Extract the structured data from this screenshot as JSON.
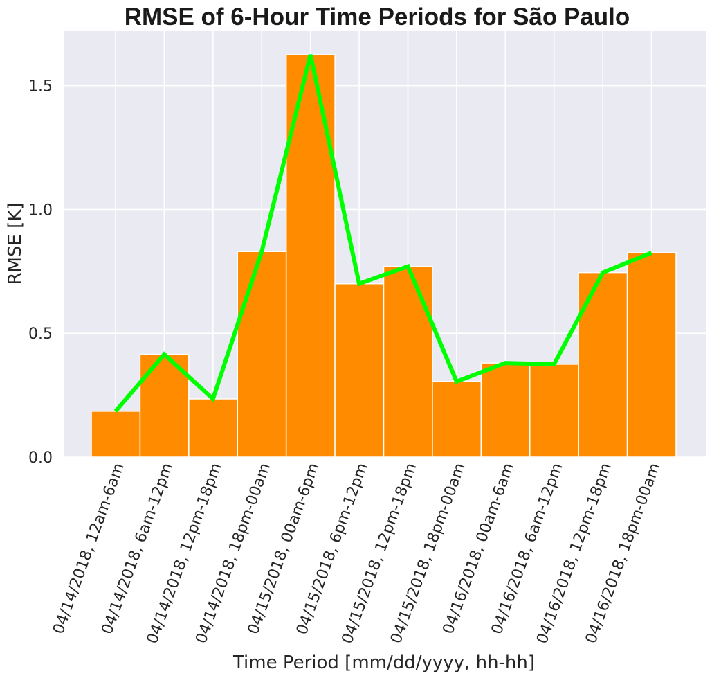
{
  "chart_data": {
    "type": "bar",
    "title": "RMSE of 6-Hour Time Periods for São Paulo",
    "xlabel": "Time Period [mm/dd/yyyy, hh-hh]",
    "ylabel": "RMSE [K]",
    "ylim": [
      0,
      1.72
    ],
    "yticks": [
      "0.0",
      "0.5",
      "1.0",
      "1.5"
    ],
    "categories": [
      "04/14/2018, 12am-6am",
      "04/14/2018, 6am-12pm",
      "04/14/2018, 12pm-18pm",
      "04/14/2018, 18pm-00am",
      "04/15/2018, 00am-6pm",
      "04/15/2018, 6pm-12pm",
      "04/15/2018, 12pm-18pm",
      "04/15/2018, 18pm-00am",
      "04/16/2018, 00am-6am",
      "04/16/2018, 6am-12pm",
      "04/16/2018, 12pm-18pm",
      "04/16/2018, 18pm-00am"
    ],
    "series": [
      {
        "type": "bar",
        "values": [
          0.185,
          0.415,
          0.235,
          0.83,
          1.625,
          0.7,
          0.77,
          0.305,
          0.38,
          0.375,
          0.745,
          0.825
        ]
      },
      {
        "type": "line",
        "values": [
          0.185,
          0.415,
          0.235,
          0.83,
          1.625,
          0.7,
          0.77,
          0.305,
          0.38,
          0.375,
          0.745,
          0.825
        ]
      }
    ],
    "colors": {
      "bar": "#ff8c00",
      "line": "#00ff00",
      "plot_background": "#eaeaf2",
      "grid": "#ffffff"
    },
    "grid": true
  }
}
